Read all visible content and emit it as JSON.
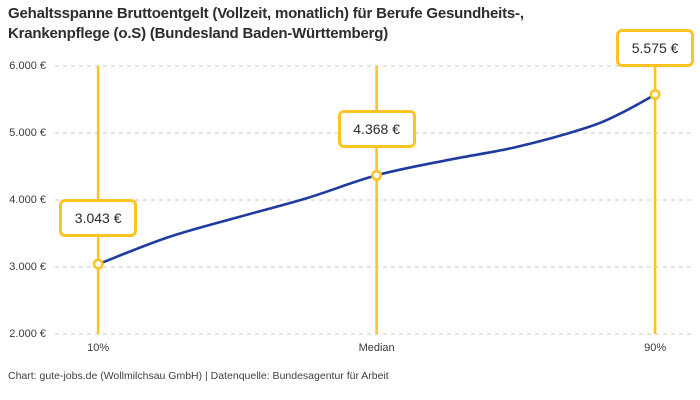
{
  "title": {
    "line1": "Gehaltsspanne Bruttoentgelt (Vollzeit, monatlich) für Berufe Gesundheits-,",
    "line2": "Krankenpflege (o.S) (Bundesland Baden-Württemberg)"
  },
  "footer": "Chart: gute-jobs.de (Wollmilchsau GmbH) | Datenquelle: Bundesagentur für Arbeit",
  "colors": {
    "accent_yellow": "#fcc423",
    "curve_blue": "#1e3ca0",
    "gridline_gray": "#cbcbcb",
    "marker_fill": "#ffffff"
  },
  "chart_data": {
    "type": "line",
    "title": "Gehaltsspanne Bruttoentgelt (Vollzeit, monatlich) für Berufe Gesundheits-, Krankenpflege (o.S) (Bundesland Baden-Württemberg)",
    "xlabel": "",
    "ylabel": "",
    "grid": "horizontal-dashed",
    "legend_position": "none",
    "xlim": [
      3.8,
      95.3
    ],
    "ylim": [
      2000,
      6000
    ],
    "yticks": [
      {
        "value": 6000,
        "label": "6.000 €"
      },
      {
        "value": 5000,
        "label": "5.000 €"
      },
      {
        "value": 4000,
        "label": "4.000 €"
      },
      {
        "value": 3000,
        "label": "3.000 €"
      },
      {
        "value": 2000,
        "label": "2.000 €"
      }
    ],
    "xticks": [
      {
        "pct": 10,
        "label": "10%"
      },
      {
        "pct": 50,
        "label": "Median"
      },
      {
        "pct": 90,
        "label": "90%"
      }
    ],
    "curve": [
      [
        10,
        3043
      ],
      [
        20,
        3442
      ],
      [
        30,
        3741
      ],
      [
        40,
        4029
      ],
      [
        50,
        4368
      ],
      [
        60,
        4593
      ],
      [
        70,
        4790
      ],
      [
        80,
        5075
      ],
      [
        85,
        5290
      ],
      [
        90,
        5575
      ]
    ],
    "points": [
      {
        "pct": 10,
        "value": 3043,
        "label": "3.043 €"
      },
      {
        "pct": 50,
        "value": 4368,
        "label": "4.368 €"
      },
      {
        "pct": 90,
        "value": 5575,
        "label": "5.575 €"
      }
    ]
  }
}
